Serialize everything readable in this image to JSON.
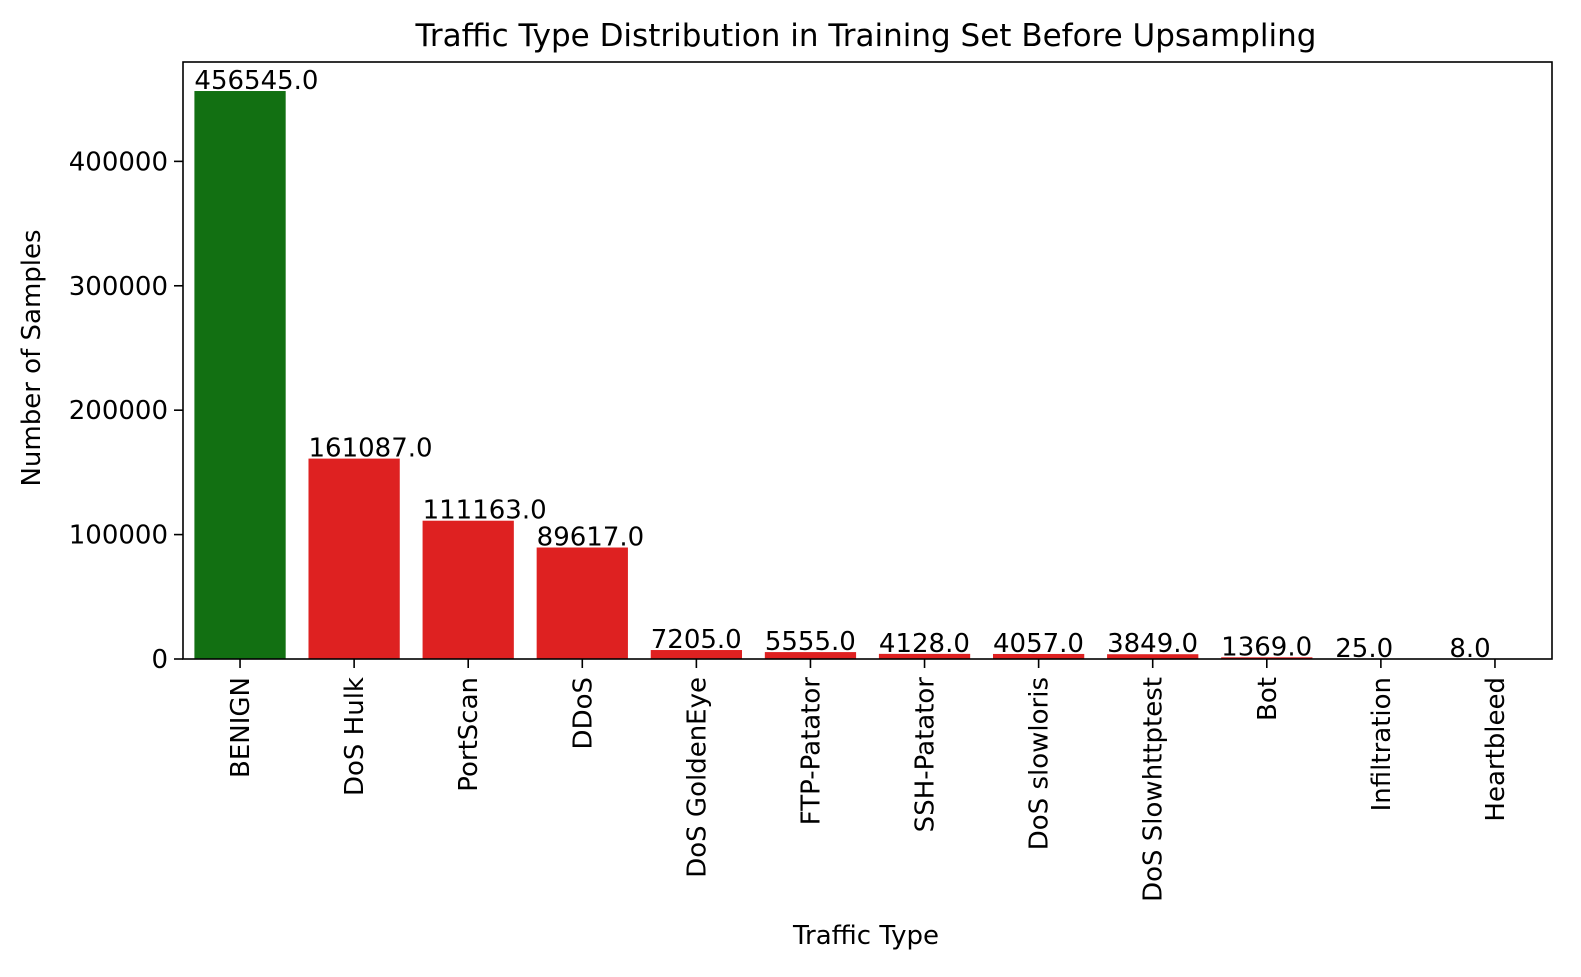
{
  "chart_data": {
    "type": "bar",
    "title": "Traffic Type Distribution in Training Set Before Upsampling",
    "xlabel": "Traffic Type",
    "ylabel": "Number of Samples",
    "categories": [
      "BENIGN",
      "DoS Hulk",
      "PortScan",
      "DDoS",
      "DoS GoldenEye",
      "FTP-Patator",
      "SSH-Patator",
      "DoS slowloris",
      "DoS Slowhttptest",
      "Bot",
      "Infiltration",
      "Heartbleed"
    ],
    "values": [
      456545,
      161087,
      111163,
      89617,
      7205,
      5555,
      4128,
      4057,
      3849,
      1369,
      25,
      8
    ],
    "data_labels": [
      "456545.0",
      "161087.0",
      "111163.0",
      "89617.0",
      "7205.0",
      "5555.0",
      "4128.0",
      "4057.0",
      "3849.0",
      "1369.0",
      "25.0",
      "8.0"
    ],
    "bar_colors": [
      "#127012",
      "#de2121",
      "#de2121",
      "#de2121",
      "#de2121",
      "#de2121",
      "#de2121",
      "#de2121",
      "#de2121",
      "#de2121",
      "#de2121",
      "#de2121"
    ],
    "ylim": [
      0,
      479872
    ],
    "yticks": [
      0,
      100000,
      200000,
      300000,
      400000
    ],
    "ytick_labels": [
      "0",
      "100000",
      "200000",
      "300000",
      "400000"
    ],
    "grid": false,
    "legend": "none"
  }
}
